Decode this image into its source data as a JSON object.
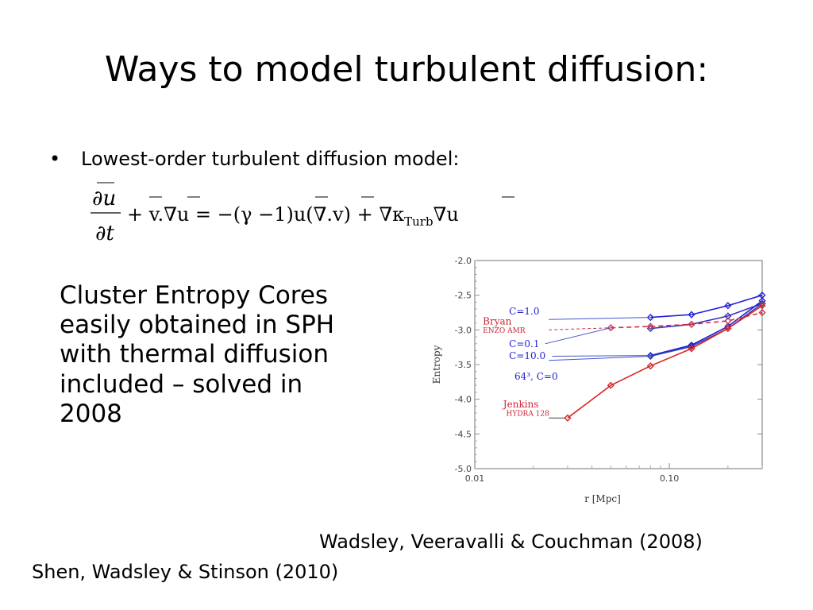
{
  "slide": {
    "title": "Ways to model turbulent diffusion:",
    "bullet": "Lowest-order turbulent diffusion model:",
    "cluster_lines": [
      "Cluster Entropy Cores",
      "easily obtained in SPH",
      "with thermal diffusion",
      "included – solved in",
      "2008"
    ],
    "citation_1": "Wadsley, Veeravalli & Couchman  (2008)",
    "citation_2": "Shen, Wadsley & Stinson  (2010)"
  },
  "equation": {
    "numerator": "∂u",
    "denominator": "∂t",
    "term_1": "+ v.∇u = −(γ −1)u(∇.v) + ∇κ",
    "subscript": "Turb",
    "term_end": "∇u"
  },
  "chart_data": {
    "type": "line",
    "xlabel": "r [Mpc]",
    "ylabel": "Entropy",
    "xscale": "log",
    "xlim": [
      0.01,
      0.3
    ],
    "ylim": [
      -5.0,
      -2.0
    ],
    "xticks": [
      {
        "value": 0.01,
        "label": "0.01"
      },
      {
        "value": 0.1,
        "label": "0.10"
      }
    ],
    "yticks": [
      {
        "value": -2.0,
        "label": "-2.0"
      },
      {
        "value": -2.5,
        "label": "-2.5"
      },
      {
        "value": -3.0,
        "label": "-3.0"
      },
      {
        "value": -3.5,
        "label": "-3.5"
      },
      {
        "value": -4.0,
        "label": "-4.0"
      },
      {
        "value": -4.5,
        "label": "-4.5"
      },
      {
        "value": -5.0,
        "label": "-5.0"
      }
    ],
    "series": [
      {
        "name": "C=1.0",
        "color": "#2222dd",
        "dash": false,
        "marker": "diamond",
        "x": [
          0.08,
          0.13,
          0.2,
          0.3
        ],
        "y": [
          -2.82,
          -2.78,
          -2.65,
          -2.5
        ]
      },
      {
        "name": "C=0.1",
        "color": "#3333cc",
        "dash": false,
        "marker": "diamond",
        "x": [
          0.08,
          0.13,
          0.2,
          0.3
        ],
        "y": [
          -2.98,
          -2.92,
          -2.8,
          -2.62
        ]
      },
      {
        "name": "C=10.0",
        "color": "#1a1acc",
        "dash": false,
        "marker": "diamond",
        "x": [
          0.08,
          0.13,
          0.2,
          0.3
        ],
        "y": [
          -3.37,
          -3.22,
          -2.95,
          -2.58
        ]
      },
      {
        "name": "64³, C=0",
        "color": "#3344bb",
        "dash": false,
        "marker": "diamond",
        "x": [
          0.08,
          0.13,
          0.2,
          0.3
        ],
        "y": [
          -3.38,
          -3.24,
          -2.98,
          -2.62
        ]
      },
      {
        "name": "Bryan ENZO AMR",
        "color": "#cc3344",
        "dash": true,
        "marker": "diamond",
        "x": [
          0.05,
          0.08,
          0.13,
          0.2,
          0.3
        ],
        "y": [
          -2.97,
          -2.95,
          -2.92,
          -2.87,
          -2.75
        ]
      },
      {
        "name": "Jenkins HYDRA 128",
        "color": "#dd2222",
        "dash": false,
        "marker": "diamond",
        "x": [
          0.03,
          0.05,
          0.08,
          0.13,
          0.2,
          0.3
        ],
        "y": [
          -4.27,
          -3.8,
          -3.52,
          -3.27,
          -2.98,
          -2.65
        ]
      }
    ],
    "annotations": [
      {
        "text": "Bryan",
        "color": "#cc2233",
        "size": 12,
        "anchor_x": 0.011,
        "anchor_y": -2.92
      },
      {
        "text": "ENZO AMR",
        "color": "#cc2233",
        "size": 9,
        "anchor_x": 0.011,
        "anchor_y": -3.04
      },
      {
        "text": "C=1.0",
        "color": "#2222cc",
        "size": 12,
        "anchor_x": 0.015,
        "anchor_y": -2.78
      },
      {
        "text": "C=0.1",
        "color": "#2222cc",
        "size": 12,
        "anchor_x": 0.015,
        "anchor_y": -3.25
      },
      {
        "text": "C=10.0",
        "color": "#2222cc",
        "size": 12,
        "anchor_x": 0.015,
        "anchor_y": -3.42
      },
      {
        "text": "64³, C=0",
        "color": "#2222cc",
        "size": 12,
        "anchor_x": 0.016,
        "anchor_y": -3.72
      },
      {
        "text": "Jenkins",
        "color": "#cc2233",
        "size": 12,
        "anchor_x": 0.014,
        "anchor_y": -4.12
      },
      {
        "text": "HYDRA 128",
        "color": "#cc2233",
        "size": 9,
        "anchor_x": 0.0145,
        "anchor_y": -4.24
      }
    ]
  }
}
